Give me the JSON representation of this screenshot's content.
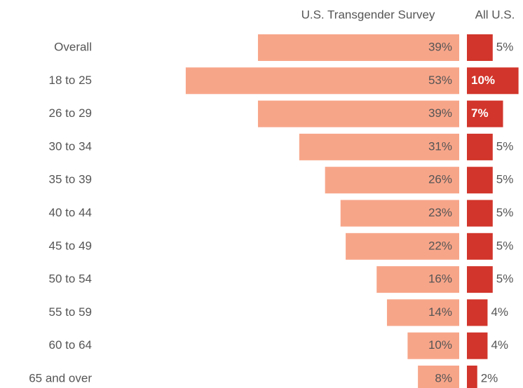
{
  "chart_data": {
    "type": "paired-bar",
    "categories": [
      "Overall",
      "18 to 25",
      "26 to 29",
      "30 to 34",
      "35 to 39",
      "40 to 44",
      "45 to 49",
      "50 to 54",
      "55 to 59",
      "60 to 64",
      "65 and over"
    ],
    "series": [
      {
        "name": "U.S. Transgender Survey",
        "color": "#f7a589",
        "values": [
          39,
          53,
          39,
          31,
          26,
          23,
          22,
          16,
          14,
          10,
          8
        ],
        "value_labels": [
          "39%",
          "53%",
          "39%",
          "31%",
          "26%",
          "23%",
          "22%",
          "16%",
          "14%",
          "10%",
          "8%"
        ]
      },
      {
        "name": "All U.S.",
        "color": "#d2352b",
        "values": [
          5,
          10,
          7,
          5,
          5,
          5,
          5,
          5,
          4,
          4,
          2
        ],
        "value_labels": [
          "5%",
          "10%",
          "7%",
          "5%",
          "5%",
          "5%",
          "5%",
          "5%",
          "4%",
          "4%",
          "2%"
        ]
      }
    ]
  }
}
